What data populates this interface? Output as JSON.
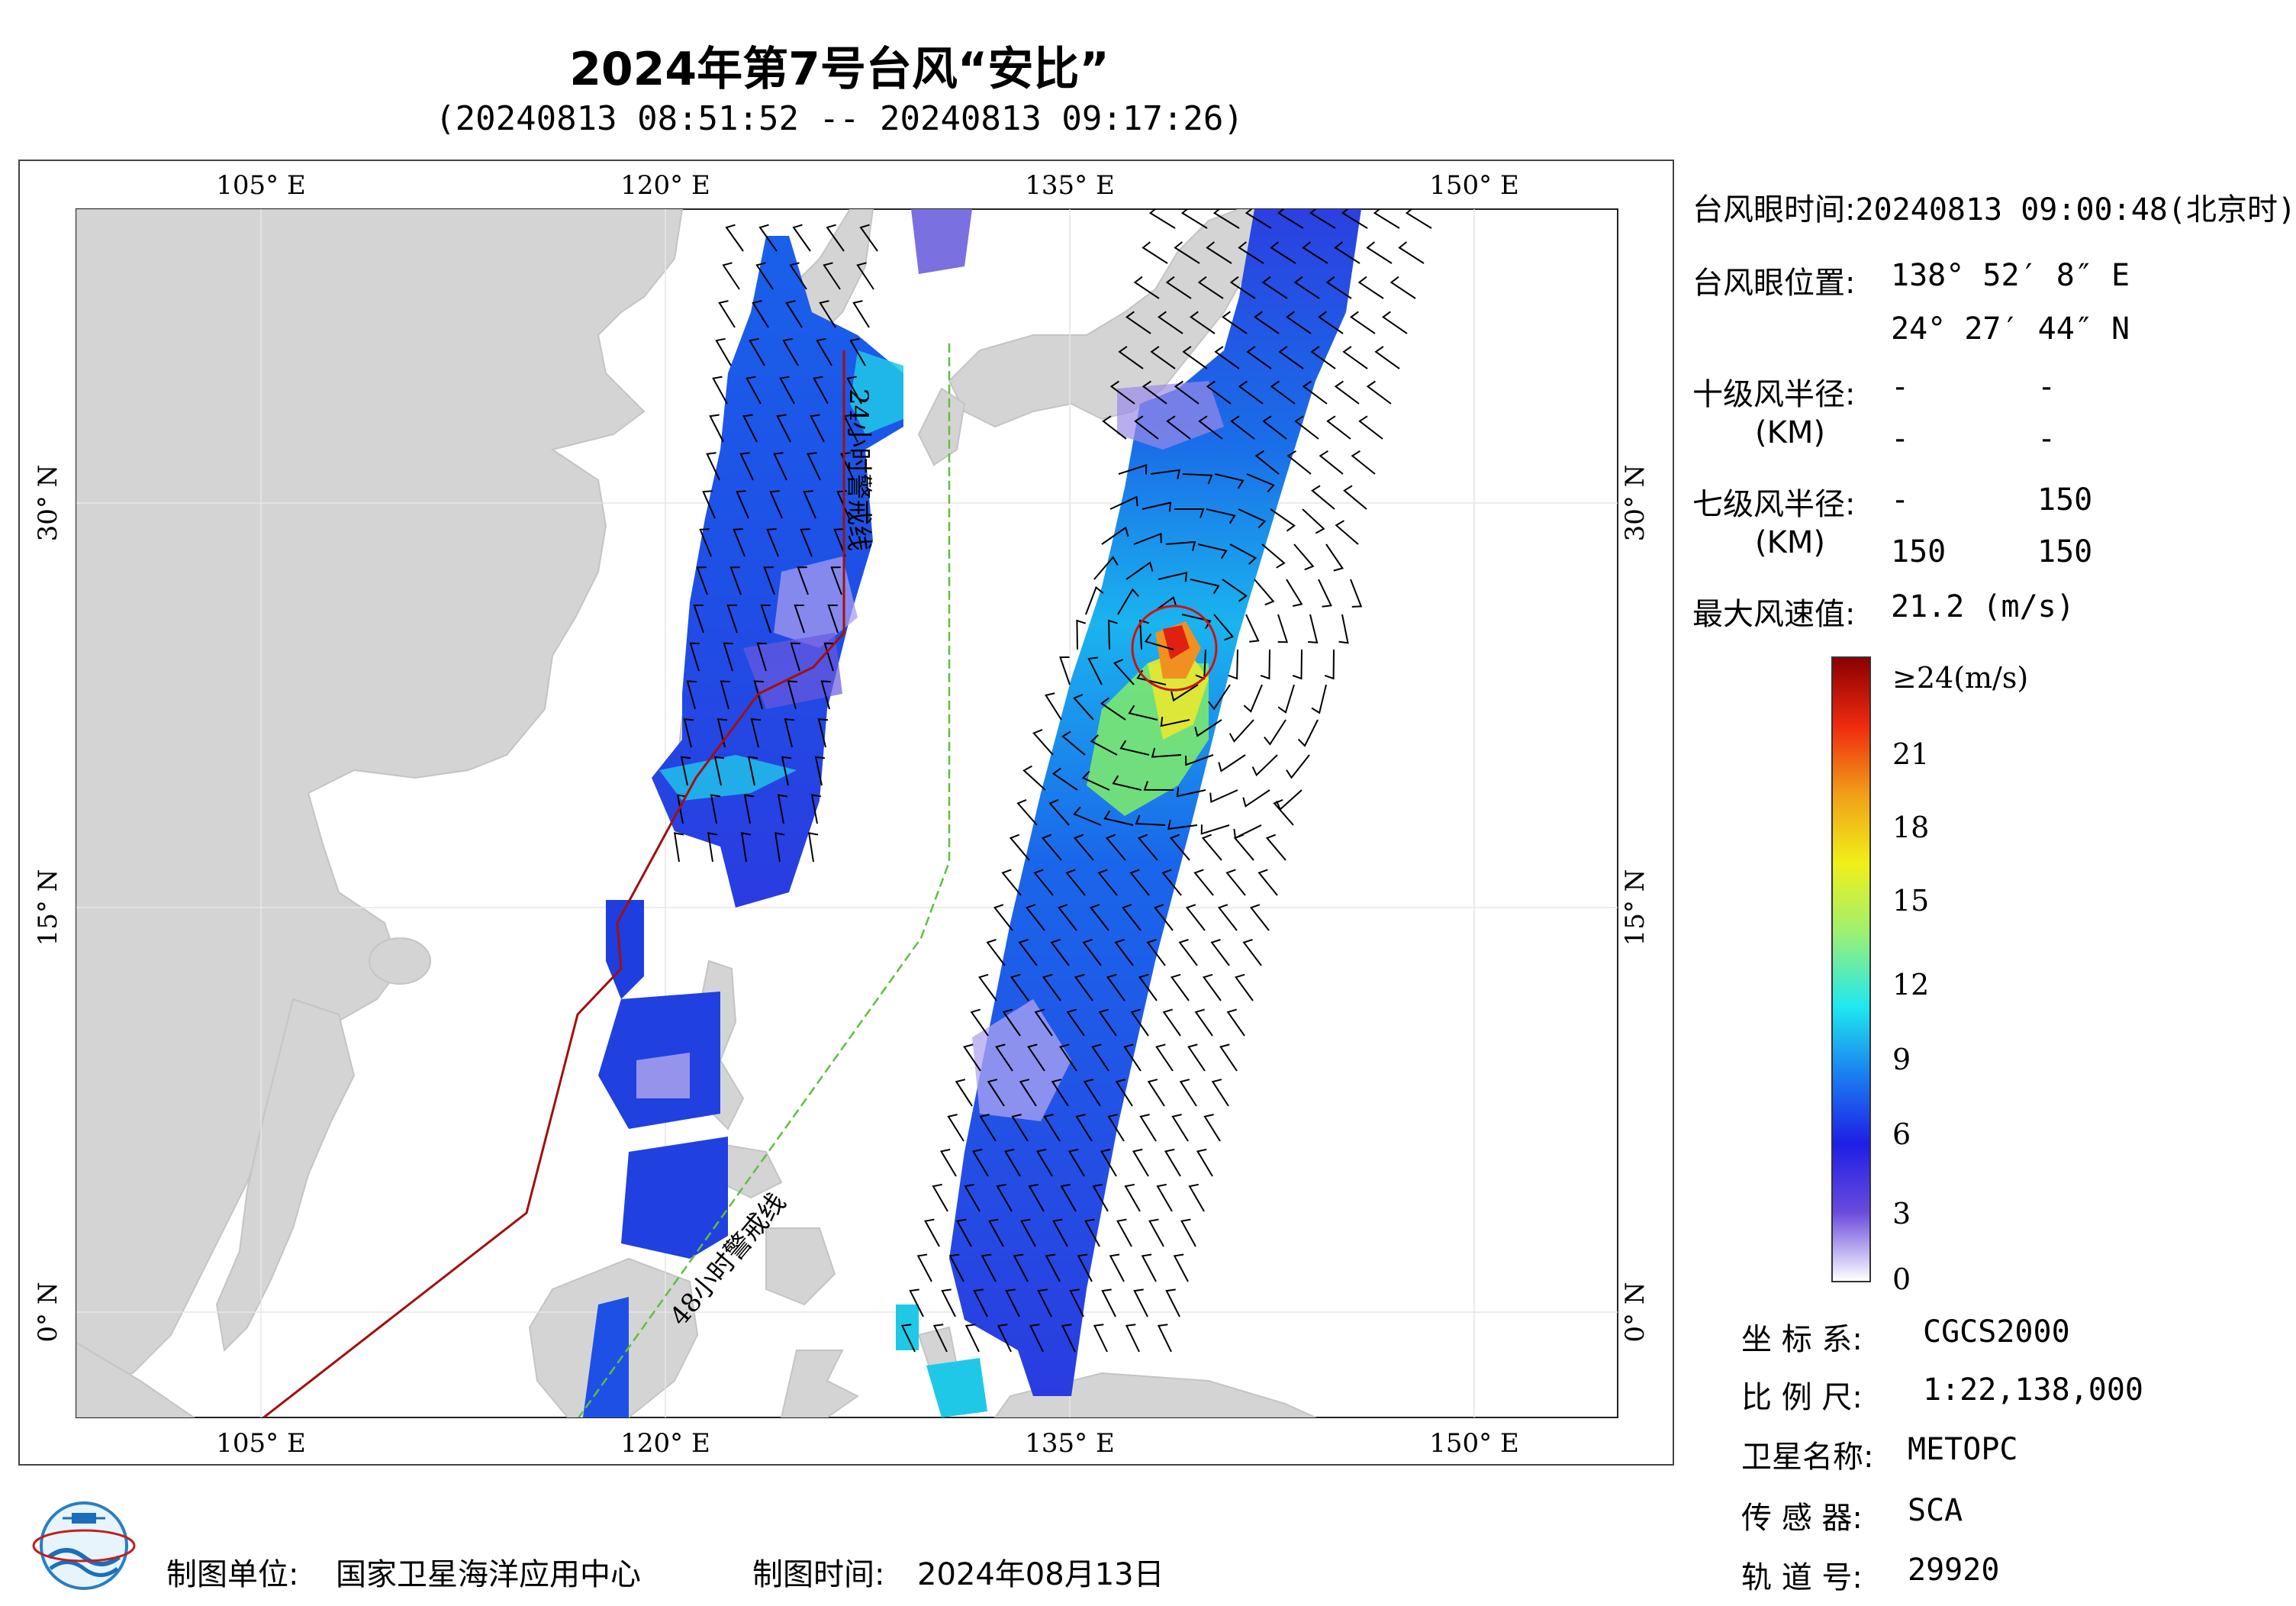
{
  "title": "2024年第7号台风“安比”",
  "subtitle": "(20240813 08:51:52 -- 20240813 09:17:26)",
  "axes": {
    "lon_top": [
      "105° E",
      "120° E",
      "135° E",
      "150° E"
    ],
    "lon_bottom": [
      "105° E",
      "120° E",
      "135° E",
      "150° E"
    ],
    "lat_left": [
      "30° N",
      "15° N",
      "0° N"
    ],
    "lat_right": [
      "30° N",
      "15° N",
      "0° N"
    ]
  },
  "map_labels": {
    "line_24h": "24小时警戒线",
    "line_48h": "48小时警戒线"
  },
  "info": {
    "eye_time_label": "台风眼时间:",
    "eye_time_value": "20240813 09:00:48(北京时)",
    "eye_pos_label": "台风眼位置:",
    "eye_lon": "138° 52′ 8″ E",
    "eye_lat": "24° 27′ 44″ N",
    "r10_label": "十级风半径:",
    "r10_unit": "(KM)",
    "r10_values": [
      "-",
      "-",
      "-",
      "-"
    ],
    "r7_label": "七级风半径:",
    "r7_unit": "(KM)",
    "r7_values": [
      "-",
      "150",
      "150",
      "150"
    ],
    "max_wind_label": "最大风速值:",
    "max_wind_value": "21.2  (m/s)"
  },
  "legend": {
    "top_label": "≥24(m/s)",
    "ticks": [
      "21",
      "18",
      "15",
      "12",
      "9",
      "6",
      "3",
      "0"
    ],
    "colors": [
      "#ffffff",
      "#6a4bdc",
      "#1e1ee6",
      "#1a7ef0",
      "#1ee8f0",
      "#9ef070",
      "#f0f018",
      "#f0a018",
      "#f02a10",
      "#8a0000"
    ]
  },
  "meta": {
    "coord_label": "坐 标 系:",
    "coord_value": "CGCS2000",
    "scale_label": "比 例 尺:",
    "scale_value": "1:22,138,000",
    "sat_label": "卫星名称:",
    "sat_value": "METOPC",
    "sensor_label": "传 感 器:",
    "sensor_value": "SCA",
    "orbit_label": "轨 道 号:",
    "orbit_value": "29920"
  },
  "footer": {
    "org_label": "制图单位:",
    "org_value": "国家卫星海洋应用中心",
    "date_label": "制图时间:",
    "date_value": "2024年08月13日"
  },
  "colors": {
    "land": "#d4d4d4",
    "sea": "#ffffff",
    "warning_line": "#a01010",
    "line_48h": "#5fbf3f",
    "typhoon_circle": "#d01010"
  }
}
